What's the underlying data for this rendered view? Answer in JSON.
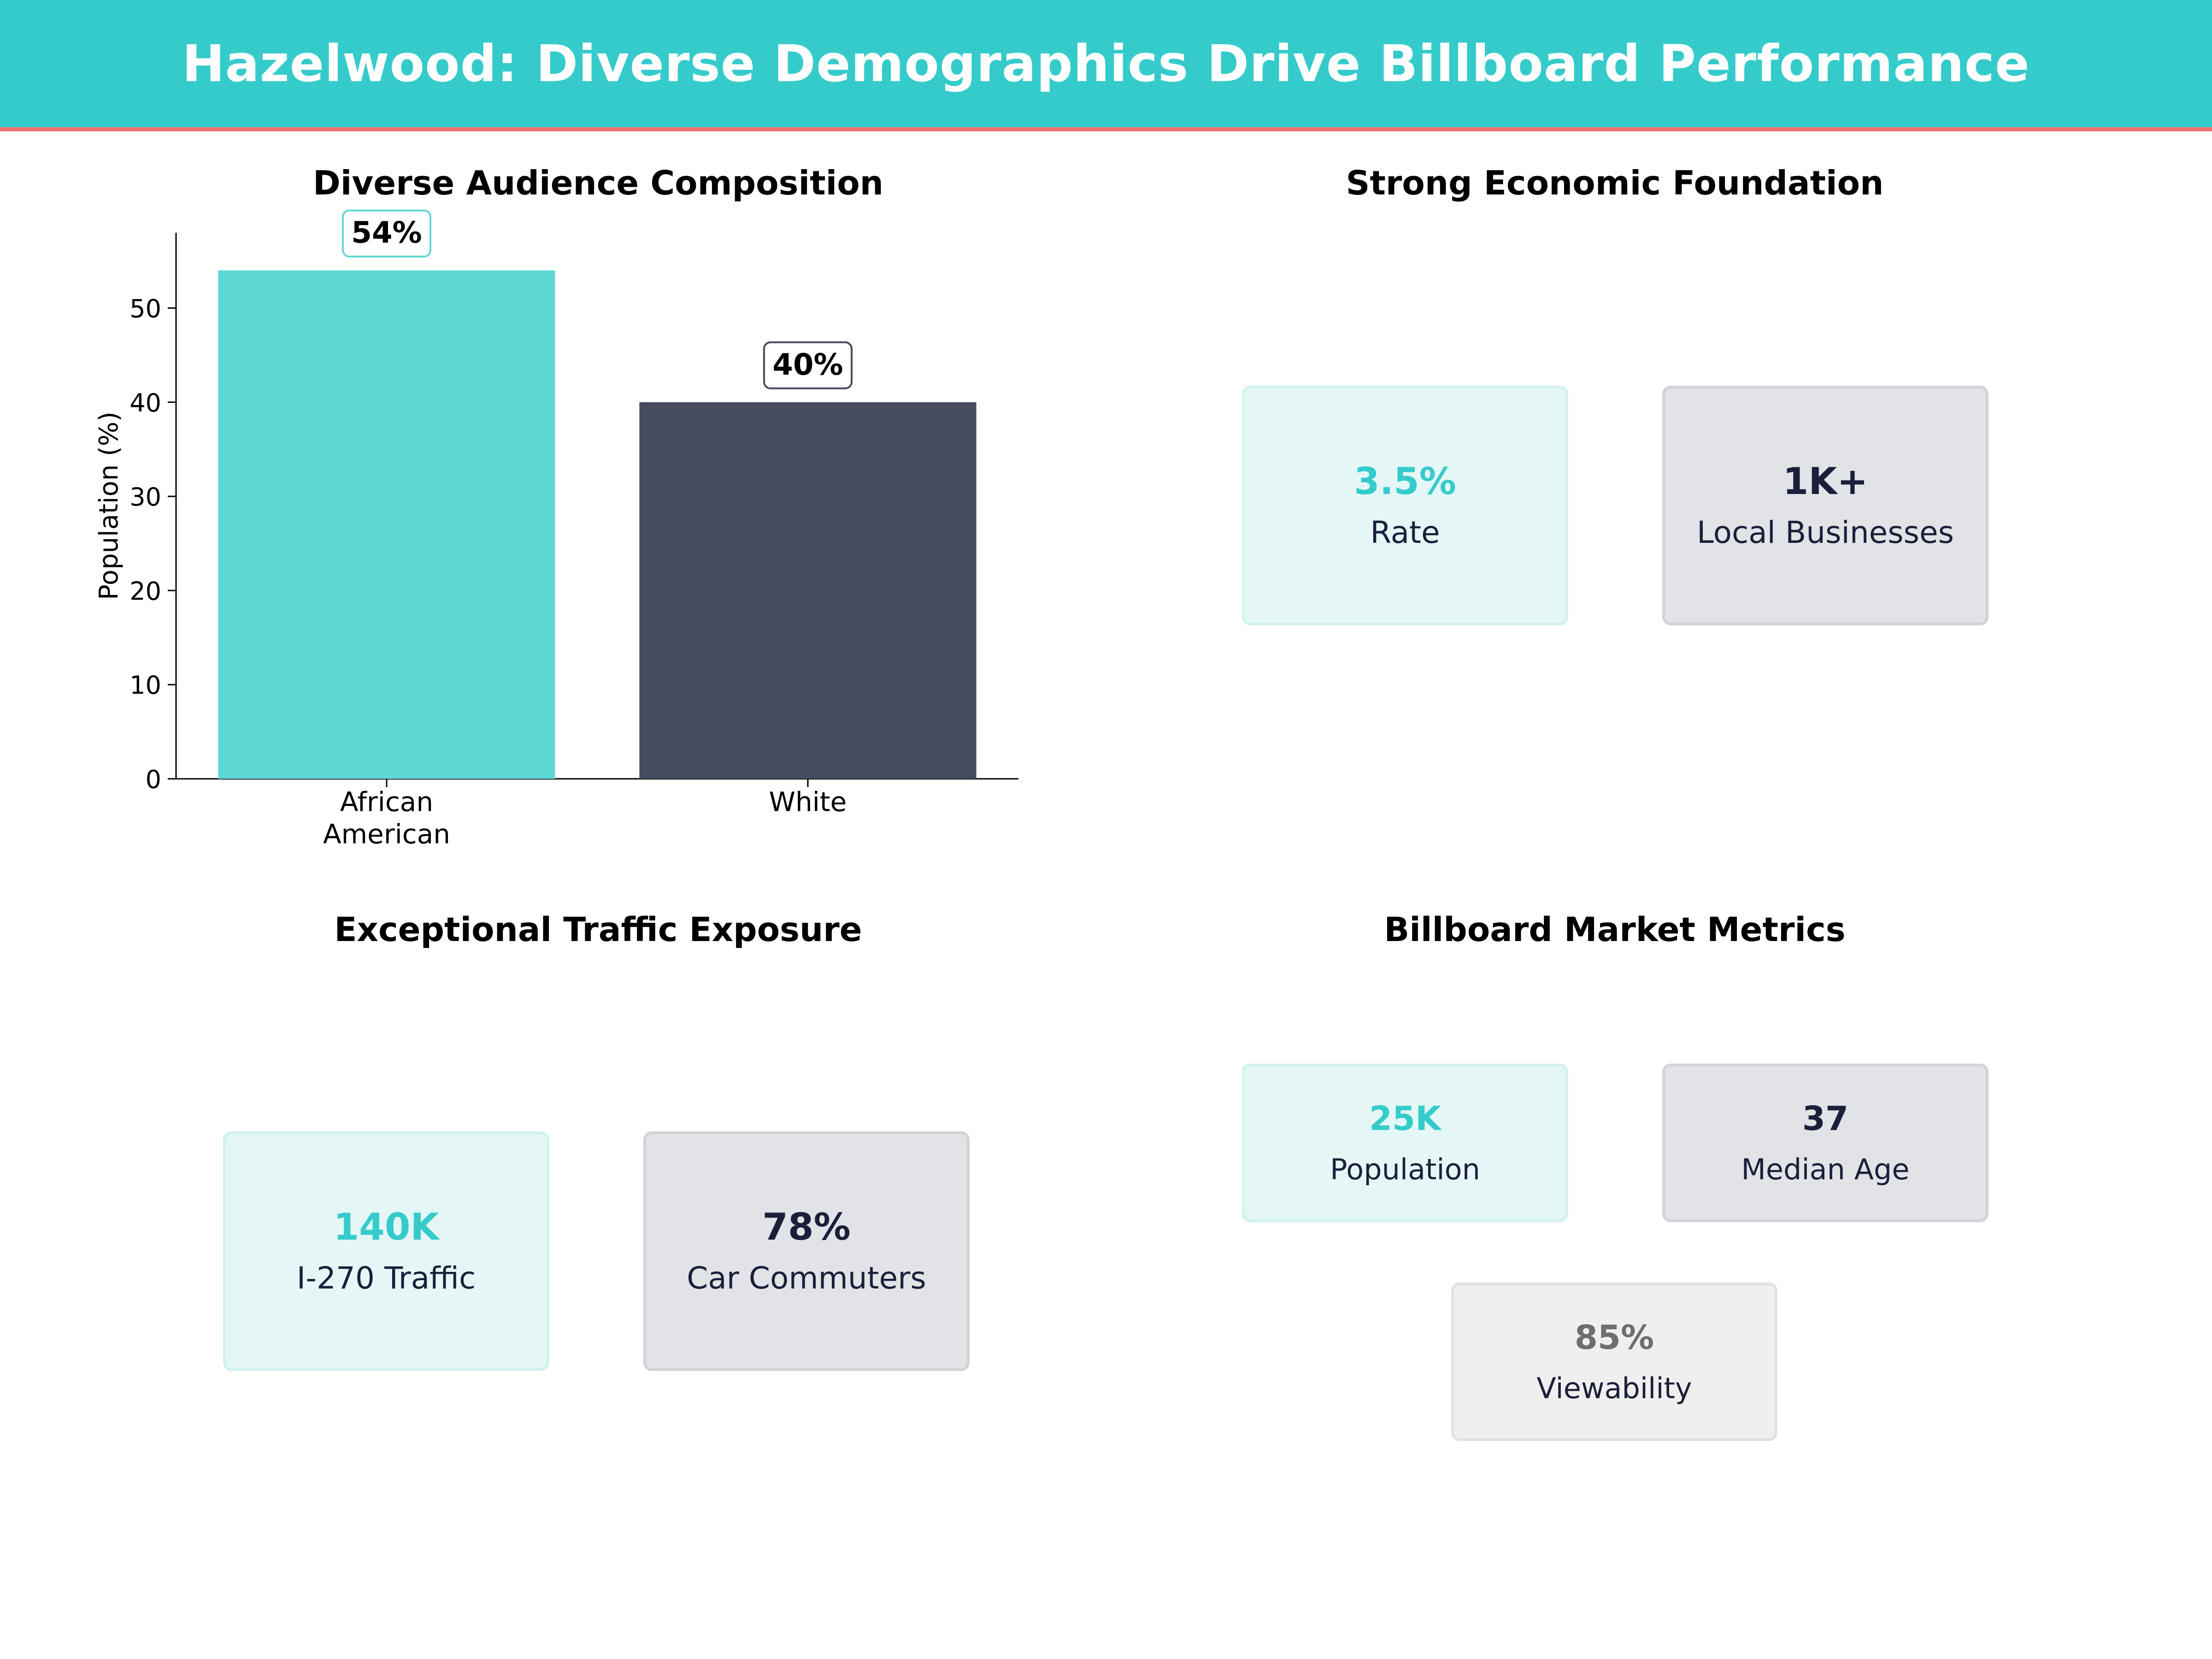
{
  "header": {
    "title": "Hazelwood: Diverse Demographics Drive Billboard Performance"
  },
  "colors": {
    "teal": "#36cbcb",
    "teal_bar": "#5dd8d4",
    "navy": "#464b60",
    "navy_text": "#1c1f3a",
    "gray_text": "#6e6e6e",
    "accent_line": "#f07070"
  },
  "panels": {
    "audience": {
      "title": "Diverse Audience Composition"
    },
    "economic": {
      "title": "Strong Economic Foundation",
      "cards": [
        {
          "value": "3.5%",
          "label": "Rate"
        },
        {
          "value": "1K+",
          "label": "Local Businesses"
        }
      ]
    },
    "traffic": {
      "title": "Exceptional Traffic Exposure",
      "cards": [
        {
          "value": "140K",
          "label": "I-270 Traffic"
        },
        {
          "value": "78%",
          "label": "Car Commuters"
        }
      ]
    },
    "market": {
      "title": "Billboard Market Metrics",
      "cards": [
        {
          "value": "25K",
          "label": "Population"
        },
        {
          "value": "37",
          "label": "Median Age"
        },
        {
          "value": "85%",
          "label": "Viewability"
        }
      ]
    }
  },
  "chart_data": {
    "type": "bar",
    "title": "Diverse Audience Composition",
    "categories": [
      "African\nAmerican",
      "White"
    ],
    "values": [
      54,
      40
    ],
    "data_labels": [
      "54%",
      "40%"
    ],
    "colors": [
      "#5dd8d4",
      "#464b60"
    ],
    "xlabel": "",
    "ylabel": "Population (%)",
    "ylim": [
      0,
      58
    ],
    "yticks": [
      0,
      10,
      20,
      30,
      40,
      50
    ],
    "grid": false,
    "legend": "none"
  }
}
